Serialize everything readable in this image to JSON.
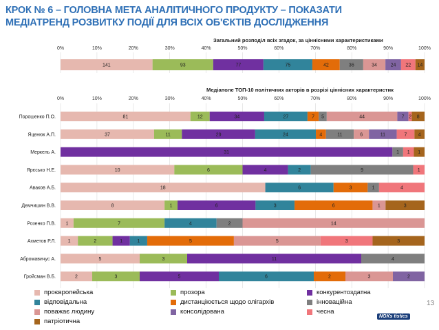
{
  "header": {
    "title_line1": "КРОК № 6 – ГОЛОВНА МЕТА АНАЛІТИЧНОГО ПРОДУКТУ – ПОКАЗАТИ",
    "title_line2": "МЕДІАТРЕНД РОЗВИТКУ ПОДІЇ ДЛЯ ВСІХ ОБ'ЄКТІВ ДОСЛІДЖЕННЯ"
  },
  "footer": {
    "page_number": "13",
    "logo_text": "NGKs tistics"
  },
  "colors": [
    "#e8bcb0",
    "#9bbb59",
    "#7030a0",
    "#31849b",
    "#e46c0a",
    "#7f7f7f",
    "#da9694",
    "#9b7fef",
    "#f37b7b",
    "#a46322"
  ],
  "legend": [
    {
      "label": "проєвропейська"
    },
    {
      "label": "прозора"
    },
    {
      "label": "конкурентоздатна"
    },
    {
      "label": "відповідальна"
    },
    {
      "label": "дистанціюється щодо олігархів"
    },
    {
      "label": "інноваційна"
    },
    {
      "label": "поважає людину"
    },
    {
      "label": "консолідована"
    },
    {
      "label": "чесна"
    },
    {
      "label": "патріотична"
    }
  ],
  "chart_data": [
    {
      "type": "bar",
      "stacked": "percent",
      "orientation": "horizontal",
      "title": "Загальний розподіл всіх згадок, за ціннісними характеристиками",
      "xlim": [
        0,
        100
      ],
      "ticks": [
        "0%",
        "10%",
        "20%",
        "30%",
        "40%",
        "50%",
        "60%",
        "70%",
        "80%",
        "90%",
        "100%"
      ],
      "categories": [
        ""
      ],
      "series": [
        {
          "name": "проєвропейська",
          "values": [
            141
          ]
        },
        {
          "name": "прозора",
          "values": [
            93
          ]
        },
        {
          "name": "конкурентоздатна",
          "values": [
            77
          ]
        },
        {
          "name": "відповідальна",
          "values": [
            75
          ]
        },
        {
          "name": "дистанціюється щодо олігархів",
          "values": [
            42
          ]
        },
        {
          "name": "інноваційна",
          "values": [
            36
          ]
        },
        {
          "name": "поважає людину",
          "values": [
            34
          ]
        },
        {
          "name": "консолідована",
          "values": [
            24
          ]
        },
        {
          "name": "чесна",
          "values": [
            22
          ]
        },
        {
          "name": "патріотична",
          "values": [
            14
          ]
        }
      ]
    },
    {
      "type": "bar",
      "stacked": "percent",
      "orientation": "horizontal",
      "title": "Медіаполе ТОП-10 політичних акторів в розрізі ціннісних характеристик",
      "xlim": [
        0,
        100
      ],
      "ticks": [
        "0%",
        "10%",
        "20%",
        "30%",
        "40%",
        "50%",
        "60%",
        "70%",
        "80%",
        "90%",
        "100%"
      ],
      "categories": [
        "Порошенко П.О.",
        "Яценюк А.П.",
        "Меркель А.",
        "Ярєсько Н.Е.",
        "Аваков А.Б.",
        "Демчишин В.В.",
        "Розенко П.В.",
        "Ахметов Р.Л.",
        "Абромавичус А.",
        "Гройсман В.Б."
      ],
      "series": [
        {
          "name": "проєвропейська",
          "values": [
            81,
            37,
            0,
            10,
            18,
            8,
            1,
            1,
            5,
            2
          ]
        },
        {
          "name": "прозора",
          "values": [
            12,
            11,
            0,
            6,
            0,
            1,
            7,
            2,
            3,
            3
          ]
        },
        {
          "name": "конкурентоздатна",
          "values": [
            34,
            29,
            31,
            4,
            0,
            6,
            0,
            1,
            11,
            5
          ]
        },
        {
          "name": "відповідальна",
          "values": [
            27,
            24,
            0,
            2,
            6,
            3,
            4,
            1,
            0,
            6
          ]
        },
        {
          "name": "дистанціюється щодо олігархів",
          "values": [
            7,
            4,
            0,
            0,
            3,
            6,
            0,
            5,
            0,
            2
          ]
        },
        {
          "name": "інноваційна",
          "values": [
            5,
            11,
            1,
            9,
            1,
            0,
            2,
            0,
            4,
            0
          ]
        },
        {
          "name": "поважає людину",
          "values": [
            44,
            6,
            0,
            0,
            0,
            1,
            14,
            5,
            0,
            3
          ]
        },
        {
          "name": "консолідована",
          "values": [
            7,
            11,
            0,
            0,
            0,
            0,
            0,
            0,
            0,
            2
          ]
        },
        {
          "name": "чесна",
          "values": [
            2,
            7,
            1,
            1,
            4,
            0,
            0,
            3,
            0,
            0
          ]
        },
        {
          "name": "патріотична",
          "values": [
            8,
            4,
            1,
            0,
            0,
            3,
            0,
            3,
            0,
            0
          ]
        }
      ]
    }
  ]
}
